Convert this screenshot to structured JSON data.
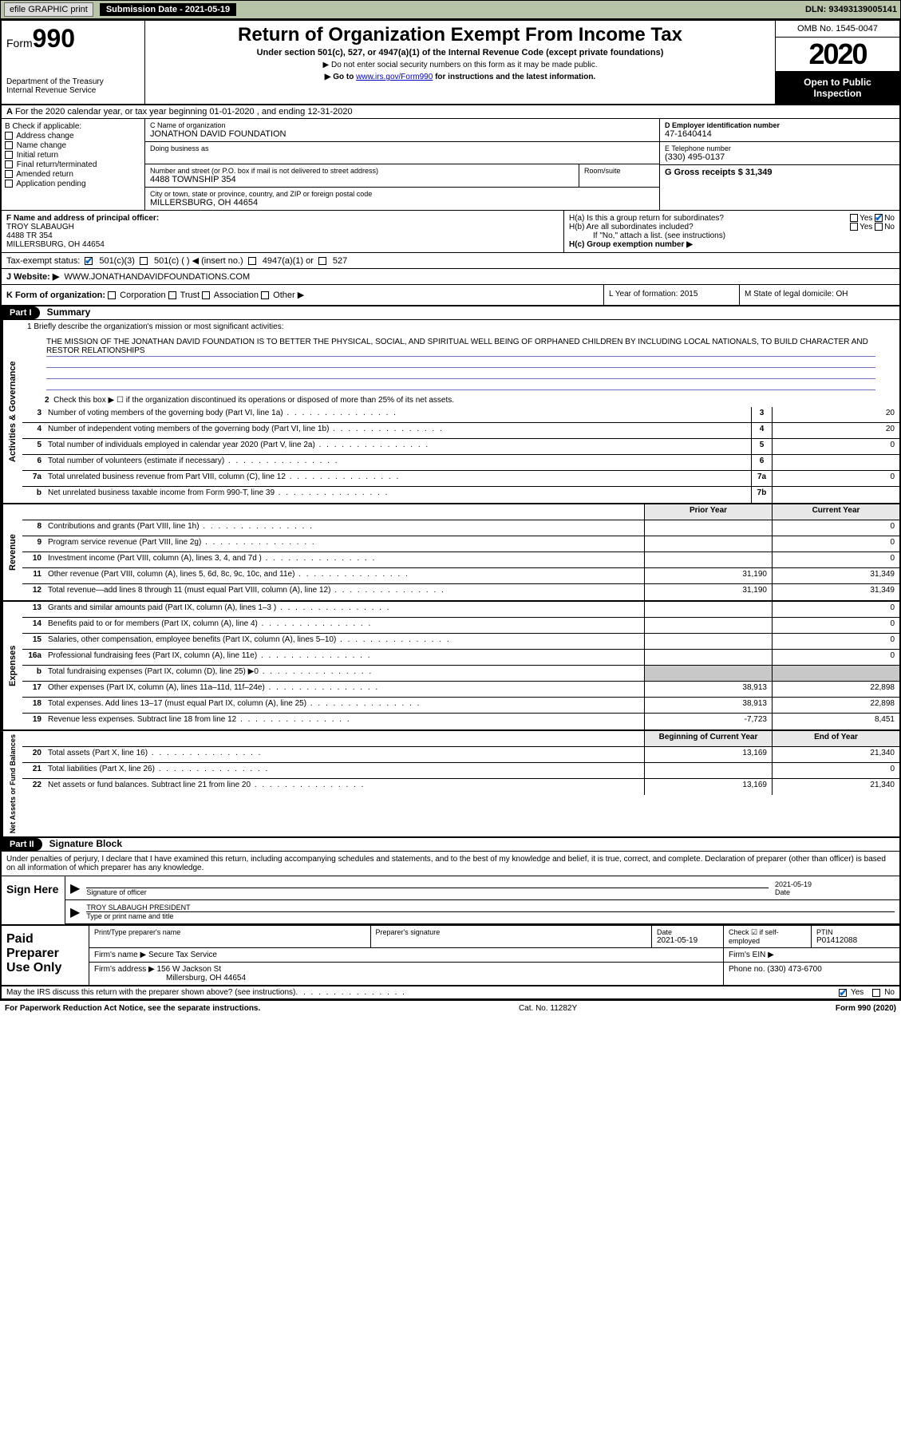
{
  "topbar": {
    "efile_label": "efile GRAPHIC print",
    "submission_label": "Submission Date - 2021-05-19",
    "dln": "DLN: 93493139005141"
  },
  "header": {
    "form_label": "Form",
    "form_number": "990",
    "dept": "Department of the Treasury",
    "irs": "Internal Revenue Service",
    "title": "Return of Organization Exempt From Income Tax",
    "subtitle": "Under section 501(c), 527, or 4947(a)(1) of the Internal Revenue Code (except private foundations)",
    "note1": "▶ Do not enter social security numbers on this form as it may be made public.",
    "note2_pre": "▶ Go to ",
    "note2_link": "www.irs.gov/Form990",
    "note2_post": " for instructions and the latest information.",
    "omb": "OMB No. 1545-0047",
    "year": "2020",
    "inspection": "Open to Public Inspection"
  },
  "line_a": "For the 2020 calendar year, or tax year beginning 01-01-2020    , and ending 12-31-2020",
  "section_b": {
    "header": "B Check if applicable:",
    "items": [
      "Address change",
      "Name change",
      "Initial return",
      "Final return/terminated",
      "Amended return",
      "Application pending"
    ],
    "c_label": "C Name of organization",
    "c_value": "JONATHON DAVID FOUNDATION",
    "dba_label": "Doing business as",
    "addr_label": "Number and street (or P.O. box if mail is not delivered to street address)",
    "addr_value": "4488 TOWNSHIP 354",
    "suite_label": "Room/suite",
    "city_label": "City or town, state or province, country, and ZIP or foreign postal code",
    "city_value": "MILLERSBURG, OH  44654",
    "d_label": "D Employer identification number",
    "d_value": "47-1640414",
    "e_label": "E Telephone number",
    "e_value": "(330) 495-0137",
    "g_label": "G Gross receipts $ 31,349"
  },
  "section_f": {
    "f_label": "F  Name and address of principal officer:",
    "f_name": "TROY SLABAUGH",
    "f_addr1": "4488 TR 354",
    "f_addr2": "MILLERSBURG, OH  44654",
    "ha_label": "H(a)  Is this a group return for subordinates?",
    "hb_label": "H(b)  Are all subordinates included?",
    "hb_note": "If \"No,\" attach a list. (see instructions)",
    "hc_label": "H(c)  Group exemption number ▶",
    "yes": "Yes",
    "no": "No"
  },
  "tax_exempt": {
    "label": "Tax-exempt status:",
    "opts": [
      "501(c)(3)",
      "501(c) (  ) ◀ (insert no.)",
      "4947(a)(1) or",
      "527"
    ]
  },
  "website": {
    "label": "J    Website: ▶",
    "value": "WWW.JONATHANDAVIDFOUNDATIONS.COM"
  },
  "section_k": {
    "k_label": "K Form of organization:",
    "k_opts": [
      "Corporation",
      "Trust",
      "Association",
      "Other ▶"
    ],
    "l_label": "L Year of formation: 2015",
    "m_label": "M State of legal domicile: OH"
  },
  "part1": {
    "header": "Part I",
    "title": "Summary",
    "q1_label": "1  Briefly describe the organization's mission or most significant activities:",
    "q1_text": "THE MISSION OF THE JONATHAN DAVID FOUNDATION IS TO BETTER THE PHYSICAL, SOCIAL, AND SPIRITUAL WELL BEING OF ORPHANED CHILDREN BY INCLUDING LOCAL NATIONALS, TO BUILD CHARACTER AND RESTOR RELATIONSHIPS",
    "q2_label": "Check this box ▶ ☐ if the organization discontinued its operations or disposed of more than 25% of its net assets.",
    "governance_side": "Activities & Governance",
    "revenue_side": "Revenue",
    "expenses_side": "Expenses",
    "netassets_side": "Net Assets or Fund Balances",
    "rows_gov": [
      {
        "n": "3",
        "d": "Number of voting members of the governing body (Part VI, line 1a)",
        "box": "3",
        "v": "20"
      },
      {
        "n": "4",
        "d": "Number of independent voting members of the governing body (Part VI, line 1b)",
        "box": "4",
        "v": "20"
      },
      {
        "n": "5",
        "d": "Total number of individuals employed in calendar year 2020 (Part V, line 2a)",
        "box": "5",
        "v": "0"
      },
      {
        "n": "6",
        "d": "Total number of volunteers (estimate if necessary)",
        "box": "6",
        "v": ""
      },
      {
        "n": "7a",
        "d": "Total unrelated business revenue from Part VIII, column (C), line 12",
        "box": "7a",
        "v": "0"
      },
      {
        "n": "b",
        "d": "Net unrelated business taxable income from Form 990-T, line 39",
        "box": "7b",
        "v": ""
      }
    ],
    "col_prior": "Prior Year",
    "col_current": "Current Year",
    "rows_rev": [
      {
        "n": "8",
        "d": "Contributions and grants (Part VIII, line 1h)",
        "p": "",
        "c": "0"
      },
      {
        "n": "9",
        "d": "Program service revenue (Part VIII, line 2g)",
        "p": "",
        "c": "0"
      },
      {
        "n": "10",
        "d": "Investment income (Part VIII, column (A), lines 3, 4, and 7d )",
        "p": "",
        "c": "0"
      },
      {
        "n": "11",
        "d": "Other revenue (Part VIII, column (A), lines 5, 6d, 8c, 9c, 10c, and 11e)",
        "p": "31,190",
        "c": "31,349"
      },
      {
        "n": "12",
        "d": "Total revenue—add lines 8 through 11 (must equal Part VIII, column (A), line 12)",
        "p": "31,190",
        "c": "31,349"
      }
    ],
    "rows_exp": [
      {
        "n": "13",
        "d": "Grants and similar amounts paid (Part IX, column (A), lines 1–3 )",
        "p": "",
        "c": "0"
      },
      {
        "n": "14",
        "d": "Benefits paid to or for members (Part IX, column (A), line 4)",
        "p": "",
        "c": "0"
      },
      {
        "n": "15",
        "d": "Salaries, other compensation, employee benefits (Part IX, column (A), lines 5–10)",
        "p": "",
        "c": "0"
      },
      {
        "n": "16a",
        "d": "Professional fundraising fees (Part IX, column (A), line 11e)",
        "p": "",
        "c": "0"
      },
      {
        "n": "b",
        "d": "Total fundraising expenses (Part IX, column (D), line 25) ▶0",
        "p": "SHADE",
        "c": "SHADE"
      },
      {
        "n": "17",
        "d": "Other expenses (Part IX, column (A), lines 11a–11d, 11f–24e)",
        "p": "38,913",
        "c": "22,898"
      },
      {
        "n": "18",
        "d": "Total expenses. Add lines 13–17 (must equal Part IX, column (A), line 25)",
        "p": "38,913",
        "c": "22,898"
      },
      {
        "n": "19",
        "d": "Revenue less expenses. Subtract line 18 from line 12",
        "p": "-7,723",
        "c": "8,451"
      }
    ],
    "col_begin": "Beginning of Current Year",
    "col_end": "End of Year",
    "rows_net": [
      {
        "n": "20",
        "d": "Total assets (Part X, line 16)",
        "p": "13,169",
        "c": "21,340"
      },
      {
        "n": "21",
        "d": "Total liabilities (Part X, line 26)",
        "p": "",
        "c": "0"
      },
      {
        "n": "22",
        "d": "Net assets or fund balances. Subtract line 21 from line 20",
        "p": "13,169",
        "c": "21,340"
      }
    ]
  },
  "part2": {
    "header": "Part II",
    "title": "Signature Block",
    "intro": "Under penalties of perjury, I declare that I have examined this return, including accompanying schedules and statements, and to the best of my knowledge and belief, it is true, correct, and complete. Declaration of preparer (other than officer) is based on all information of which preparer has any knowledge.",
    "sign_here": "Sign Here",
    "sig_officer": "Signature of officer",
    "date_label": "Date",
    "date_value": "2021-05-19",
    "name_title": "TROY SLABAUGH  PRESIDENT",
    "type_label": "Type or print name and title",
    "paid_label": "Paid Preparer Use Only",
    "prep_name_label": "Print/Type preparer's name",
    "prep_sig_label": "Preparer's signature",
    "prep_date_label": "Date",
    "prep_date_value": "2021-05-19",
    "check_self": "Check ☑ if self-employed",
    "ptin_label": "PTIN",
    "ptin_value": "P01412088",
    "firm_name_label": "Firm's name    ▶",
    "firm_name": "Secure Tax Service",
    "firm_ein_label": "Firm's EIN ▶",
    "firm_addr_label": "Firm's address ▶",
    "firm_addr1": "156 W Jackson St",
    "firm_addr2": "Millersburg, OH  44654",
    "phone_label": "Phone no. (330) 473-6700",
    "discuss": "May the IRS discuss this return with the preparer shown above? (see instructions)",
    "yes": "Yes",
    "no": "No"
  },
  "footer": {
    "paperwork": "For Paperwork Reduction Act Notice, see the separate instructions.",
    "catno": "Cat. No. 11282Y",
    "form": "Form 990 (2020)"
  }
}
